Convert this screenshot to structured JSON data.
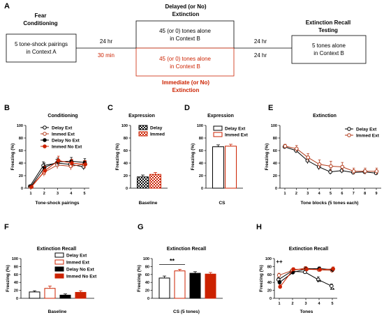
{
  "colors": {
    "black": "#000000",
    "red": "#cc2200",
    "immed_open": "#b33a1a",
    "gray": "#9a9a9a"
  },
  "schematic": {
    "panel_letter": "A",
    "stage1_title": [
      "Fear",
      "Conditioning"
    ],
    "stage1_box": [
      "5 tone-shock pairings",
      "in Context A"
    ],
    "stage2_title": [
      "Delayed (or No)",
      "Extinction"
    ],
    "stage2_box_delayed": [
      "45 (or 0) tones alone",
      "in Context B"
    ],
    "stage2_box_immediate": [
      "45 (or 0) tones alone",
      "in Context B"
    ],
    "stage2_bottom_title": [
      "Immediate (or No)",
      "Extinction"
    ],
    "stage3_title": [
      "Extinction Recall",
      "Testing"
    ],
    "stage3_box": [
      "5 tones alone",
      "in Context B"
    ],
    "interval_left_delayed": "24 hr",
    "interval_left_immediate": "30 min",
    "interval_right_top": "24 hr",
    "interval_right_bottom": "24 hr"
  },
  "chart_data": [
    {
      "id": "B",
      "type": "line",
      "title": "Conditioning",
      "xlabel": "Tone-shock pairings",
      "ylabel": "Freezing (%)",
      "x": [
        1,
        2,
        3,
        4,
        5
      ],
      "ylim": [
        0,
        100
      ],
      "yticks": [
        0,
        20,
        40,
        60,
        80,
        100
      ],
      "series": [
        {
          "name": "Delay Ext",
          "values": [
            3,
            36,
            40,
            38,
            34
          ],
          "errors": [
            2,
            6,
            6,
            5,
            5
          ],
          "color": "#000000",
          "filled": false
        },
        {
          "name": "Immed Ext",
          "values": [
            2,
            25,
            37,
            35,
            38
          ],
          "errors": [
            2,
            6,
            6,
            6,
            6
          ],
          "color": "#b33a1a",
          "filled": false
        },
        {
          "name": "Delay No Ext",
          "values": [
            3,
            33,
            42,
            43,
            41
          ],
          "errors": [
            2,
            7,
            6,
            6,
            6
          ],
          "color": "#000000",
          "filled": true
        },
        {
          "name": "Immed No Ext",
          "values": [
            2,
            28,
            44,
            40,
            38
          ],
          "errors": [
            2,
            7,
            7,
            6,
            6
          ],
          "color": "#cc2200",
          "filled": true
        }
      ]
    },
    {
      "id": "C",
      "type": "bar",
      "title": "Expression",
      "xlabel": "Baseline",
      "ylabel": "Freezing (%)",
      "ylim": [
        0,
        100
      ],
      "yticks": [
        0,
        20,
        40,
        60,
        80,
        100
      ],
      "series": [
        {
          "name": "Delay",
          "values": [
            18
          ],
          "errors": [
            3
          ],
          "pattern": "check-black"
        },
        {
          "name": "Immed",
          "values": [
            22
          ],
          "errors": [
            3
          ],
          "pattern": "check-red"
        }
      ]
    },
    {
      "id": "D",
      "type": "bar",
      "title": "Expression",
      "xlabel": "CS",
      "ylabel": "Freezing (%)",
      "ylim": [
        0,
        100
      ],
      "yticks": [
        0,
        20,
        40,
        60,
        80,
        100
      ],
      "series": [
        {
          "name": "Delay Ext",
          "values": [
            66
          ],
          "errors": [
            3
          ],
          "pattern": "open-black"
        },
        {
          "name": "Immed Ext",
          "values": [
            67
          ],
          "errors": [
            3
          ],
          "pattern": "open-red"
        }
      ]
    },
    {
      "id": "E",
      "type": "line",
      "title": "Extinction",
      "xlabel": "Tone blocks (5 tones each)",
      "ylabel": "Freezing (%)",
      "x": [
        1,
        2,
        3,
        4,
        5,
        6,
        7,
        8,
        9
      ],
      "ylim": [
        0,
        100
      ],
      "yticks": [
        0,
        20,
        40,
        60,
        80,
        100
      ],
      "series": [
        {
          "name": "Delay Ext",
          "values": [
            66,
            60,
            44,
            34,
            26,
            28,
            25,
            26,
            24
          ],
          "errors": [
            3,
            4,
            5,
            5,
            4,
            4,
            3,
            3,
            3
          ],
          "color": "#000000",
          "filled": false
        },
        {
          "name": "Immed Ext",
          "values": [
            67,
            63,
            49,
            38,
            35,
            34,
            27,
            27,
            27
          ],
          "errors": [
            3,
            5,
            6,
            7,
            8,
            7,
            5,
            5,
            5
          ],
          "color": "#b33a1a",
          "filled": false
        }
      ]
    },
    {
      "id": "F",
      "type": "bar",
      "title": "Extinction Recall",
      "xlabel": "Baseline",
      "ylabel": "Freezing (%)",
      "ylim": [
        0,
        100
      ],
      "yticks": [
        0,
        20,
        40,
        60,
        80,
        100
      ],
      "series": [
        {
          "name": "Delay Ext",
          "values": [
            16
          ],
          "errors": [
            3
          ],
          "pattern": "open-black"
        },
        {
          "name": "Immed Ext",
          "values": [
            25
          ],
          "errors": [
            6
          ],
          "pattern": "open-red"
        },
        {
          "name": "Delay No Ext",
          "values": [
            8
          ],
          "errors": [
            3
          ],
          "pattern": "solid-black"
        },
        {
          "name": "Immed No Ext",
          "values": [
            15
          ],
          "errors": [
            4
          ],
          "pattern": "solid-red"
        }
      ]
    },
    {
      "id": "G",
      "type": "bar",
      "title": "Extinction Recall",
      "xlabel": "CS (5 tones)",
      "ylabel": "Freezing (%)",
      "ylim": [
        0,
        100
      ],
      "yticks": [
        0,
        20,
        40,
        60,
        80,
        100
      ],
      "annotation": "**",
      "series": [
        {
          "name": "Delay Ext",
          "values": [
            51
          ],
          "errors": [
            5
          ],
          "pattern": "open-black"
        },
        {
          "name": "Immed Ext",
          "values": [
            69
          ],
          "errors": [
            4
          ],
          "pattern": "open-red"
        },
        {
          "name": "Delay No Ext",
          "values": [
            63
          ],
          "errors": [
            4
          ],
          "pattern": "solid-black"
        },
        {
          "name": "Immed No Ext",
          "values": [
            61
          ],
          "errors": [
            4
          ],
          "pattern": "solid-red"
        }
      ]
    },
    {
      "id": "H",
      "type": "line",
      "title": "Extinction Recall",
      "xlabel": "Tones",
      "ylabel": "Freezing (%)",
      "x": [
        1,
        2,
        3,
        4,
        5
      ],
      "ylim": [
        0,
        100
      ],
      "yticks": [
        0,
        20,
        40,
        60,
        80,
        100
      ],
      "annotations": [
        {
          "x": 1,
          "y": 88,
          "text": "++"
        },
        {
          "x": 4,
          "y": 36,
          "text": "**"
        },
        {
          "x": 5,
          "y": 16,
          "text": "**"
        }
      ],
      "series": [
        {
          "name": "Delay Ext",
          "values": [
            47,
            68,
            66,
            47,
            31
          ],
          "errors": [
            5,
            4,
            4,
            7,
            5
          ],
          "color": "#000000",
          "filled": false
        },
        {
          "name": "Immed Ext",
          "values": [
            58,
            70,
            76,
            72,
            70
          ],
          "errors": [
            5,
            4,
            4,
            5,
            5
          ],
          "color": "#b33a1a",
          "filled": false
        },
        {
          "name": "Delay No Ext",
          "values": [
            40,
            65,
            74,
            75,
            72
          ],
          "errors": [
            5,
            4,
            4,
            4,
            5
          ],
          "color": "#000000",
          "filled": true
        },
        {
          "name": "Immed No Ext",
          "values": [
            29,
            73,
            73,
            72,
            74
          ],
          "errors": [
            5,
            4,
            4,
            4,
            5
          ],
          "color": "#cc2200",
          "filled": true
        }
      ]
    }
  ]
}
